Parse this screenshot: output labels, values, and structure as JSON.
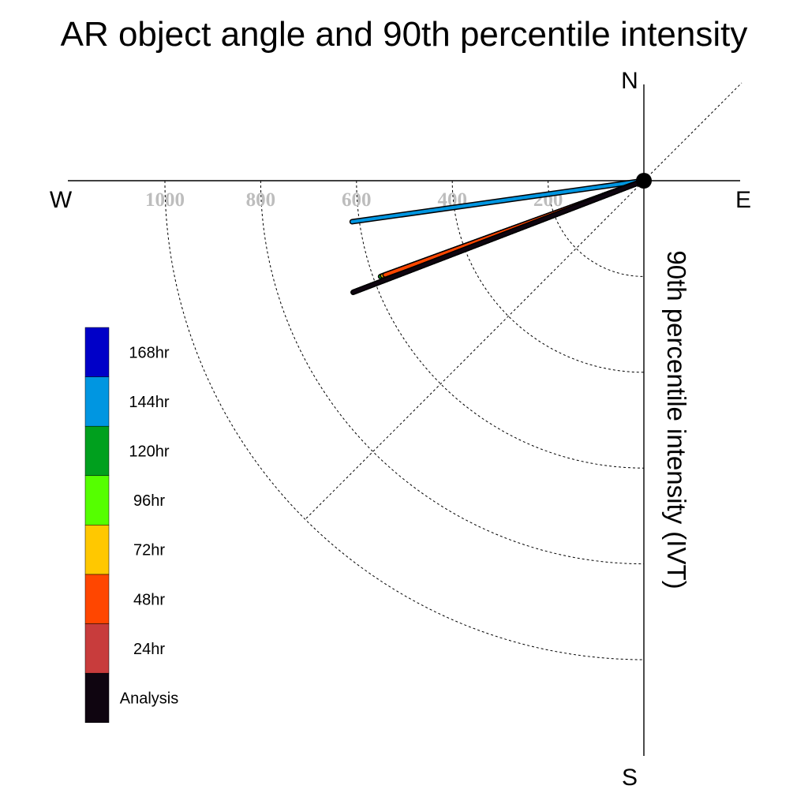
{
  "chart_data": {
    "type": "radial-vector",
    "title": "AR object angle and 90th percentile intensity",
    "ylabel": "90th percentile intensity (IVT)",
    "compass": {
      "north": "N",
      "south": "S",
      "east": "E",
      "west": "W"
    },
    "radius_ticks": [
      200,
      400,
      600,
      800,
      1000
    ],
    "radius_max": 1200,
    "grid": "dashed quarter-circle rings and 45° diagonal",
    "legend": {
      "placement": "left",
      "entries": [
        {
          "label": "168hr",
          "color": "#0000c8"
        },
        {
          "label": "144hr",
          "color": "#0096e1"
        },
        {
          "label": "120hr",
          "color": "#00a01e"
        },
        {
          "label": "96hr",
          "color": "#55ff00"
        },
        {
          "label": "72hr",
          "color": "#ffc800"
        },
        {
          "label": "48hr",
          "color": "#ff4600"
        },
        {
          "label": "24hr",
          "color": "#c83c3c"
        },
        {
          "label": "Analysis",
          "color": "#0f0510"
        }
      ]
    },
    "series": [
      {
        "name": "144hr",
        "color": "#0096e1",
        "intensity": 615,
        "angle_below_west_deg": 8
      },
      {
        "name": "168hr",
        "color": "#0000c8",
        "intensity": 460,
        "angle_below_west_deg": 21
      },
      {
        "name": "120hr",
        "color": "#00a01e",
        "intensity": 585,
        "angle_below_west_deg": 20
      },
      {
        "name": "96hr",
        "color": "#55ff00",
        "intensity": 585,
        "angle_below_west_deg": 21
      },
      {
        "name": "72hr",
        "color": "#ffc800",
        "intensity": 580,
        "angle_below_west_deg": 20
      },
      {
        "name": "48hr",
        "color": "#ff4600",
        "intensity": 575,
        "angle_below_west_deg": 20
      },
      {
        "name": "24hr",
        "color": "#c83c3c",
        "intensity": 650,
        "angle_below_west_deg": 21
      },
      {
        "name": "Analysis",
        "color": "#0f0510",
        "intensity": 650,
        "angle_below_west_deg": 21
      }
    ]
  }
}
